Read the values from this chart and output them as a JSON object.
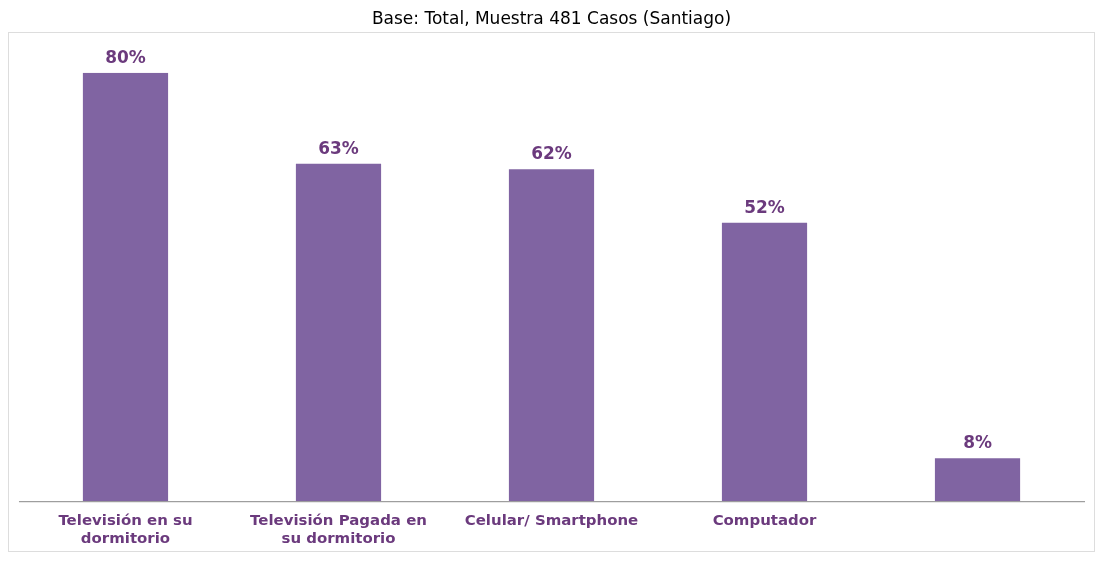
{
  "chart_data": {
    "type": "bar",
    "subtitle": "Base: Total, Muestra 481 Casos (Santiago)",
    "categories": [
      "Televisión en su dormitorio",
      "Televisión Pagada en su dormitorio",
      "Celular/ Smartphone",
      "Computador",
      null
    ],
    "values": [
      80,
      63,
      62,
      52,
      8
    ],
    "value_labels": [
      "80%",
      "63%",
      "62%",
      "52%",
      "8%"
    ],
    "color": "#8064a2",
    "grid": false,
    "legend": false
  }
}
